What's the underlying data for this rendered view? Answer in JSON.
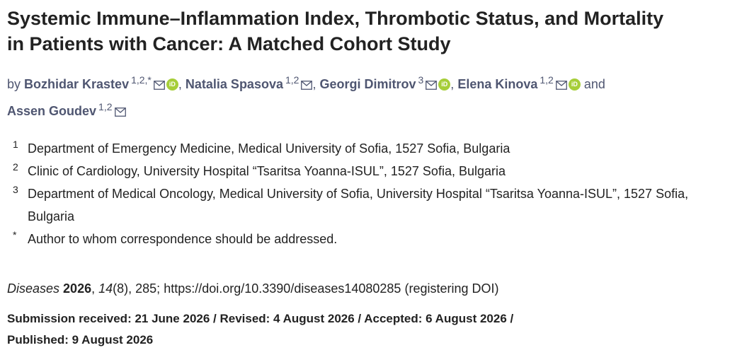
{
  "title_line1": "Systemic Immune–Inflammation Index, Thrombotic Status, and Mortality",
  "title_line2": "in Patients with Cancer: A Matched Cohort Study",
  "by_word": "by",
  "and_word": "and",
  "authors": [
    {
      "name": "Bozhidar Krastev",
      "sup": "1,2,*",
      "email_icon": "mail-icon",
      "orcid": true
    },
    {
      "name": "Natalia Spasova",
      "sup": "1,2",
      "email_icon": "mail-icon",
      "orcid": false
    },
    {
      "name": "Georgi Dimitrov",
      "sup": "3",
      "email_icon": "mail-icon",
      "orcid": true
    },
    {
      "name": "Elena Kinova",
      "sup": "1,2",
      "email_icon": "mail-icon",
      "orcid": true
    },
    {
      "name": "Assen Goudev",
      "sup": "1,2",
      "email_icon": "mail-icon",
      "orcid": false
    }
  ],
  "orcid_label": "iD",
  "affiliations": [
    {
      "num": "1",
      "text": "Department of Emergency Medicine, Medical University of Sofia, 1527 Sofia, Bulgaria"
    },
    {
      "num": "2",
      "text": "Clinic of Cardiology, University Hospital “Tsaritsa Yoanna-ISUL”, 1527 Sofia, Bulgaria"
    },
    {
      "num": "3",
      "text": "Department of Medical Oncology, Medical University of Sofia, University Hospital “Tsaritsa Yoanna-ISUL”, 1527 Sofia, Bulgaria"
    },
    {
      "num": "*",
      "text": "Author to whom correspondence should be addressed."
    }
  ],
  "citation": {
    "journal": "Diseases",
    "year": "2026",
    "volume": "14",
    "issue": "(8), 285; ",
    "doi": "https://doi.org/10.3390/diseases14080285",
    "doi_note": " (registering DOI)"
  },
  "dates_line1": "Submission received: 21 June 2026 / Revised: 4 August 2026 / Accepted: 6 August 2026 /",
  "dates_line2": "Published: 9 August 2026",
  "colors": {
    "author": "#4f5671",
    "orcid": "#a6ce39"
  }
}
